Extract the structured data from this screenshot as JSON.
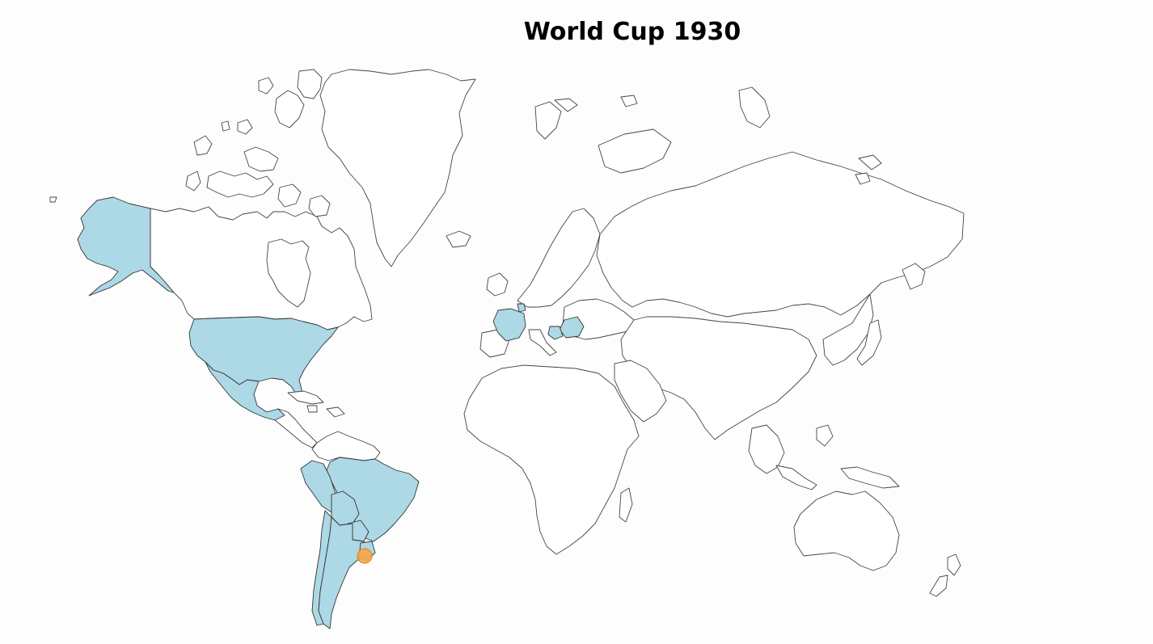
{
  "map": {
    "title": "World Cup 1930",
    "colors": {
      "participant": "#add8e6",
      "non_participant": "#ffffff",
      "border": "#444444",
      "host_marker": "#f5a64a"
    }
  },
  "countries": [
    {
      "id": "usa",
      "highlighted": true
    },
    {
      "id": "alaska",
      "highlighted": true
    },
    {
      "id": "mexico",
      "highlighted": true
    },
    {
      "id": "brazil",
      "highlighted": true
    },
    {
      "id": "argentina",
      "highlighted": true
    },
    {
      "id": "chile",
      "highlighted": true
    },
    {
      "id": "peru",
      "highlighted": true
    },
    {
      "id": "bolivia",
      "highlighted": true
    },
    {
      "id": "paraguay",
      "highlighted": true
    },
    {
      "id": "uruguay",
      "highlighted": true
    },
    {
      "id": "france",
      "highlighted": true
    },
    {
      "id": "romania",
      "highlighted": true
    },
    {
      "id": "yugoslavia",
      "highlighted": true
    },
    {
      "id": "belgium",
      "highlighted": true
    },
    {
      "id": "canada",
      "highlighted": false
    },
    {
      "id": "greenland",
      "highlighted": false
    },
    {
      "id": "russia",
      "highlighted": false
    },
    {
      "id": "africa",
      "highlighted": false
    },
    {
      "id": "australia",
      "highlighted": false
    }
  ],
  "host": {
    "id": "uruguay",
    "marker": "host-city-marker"
  }
}
